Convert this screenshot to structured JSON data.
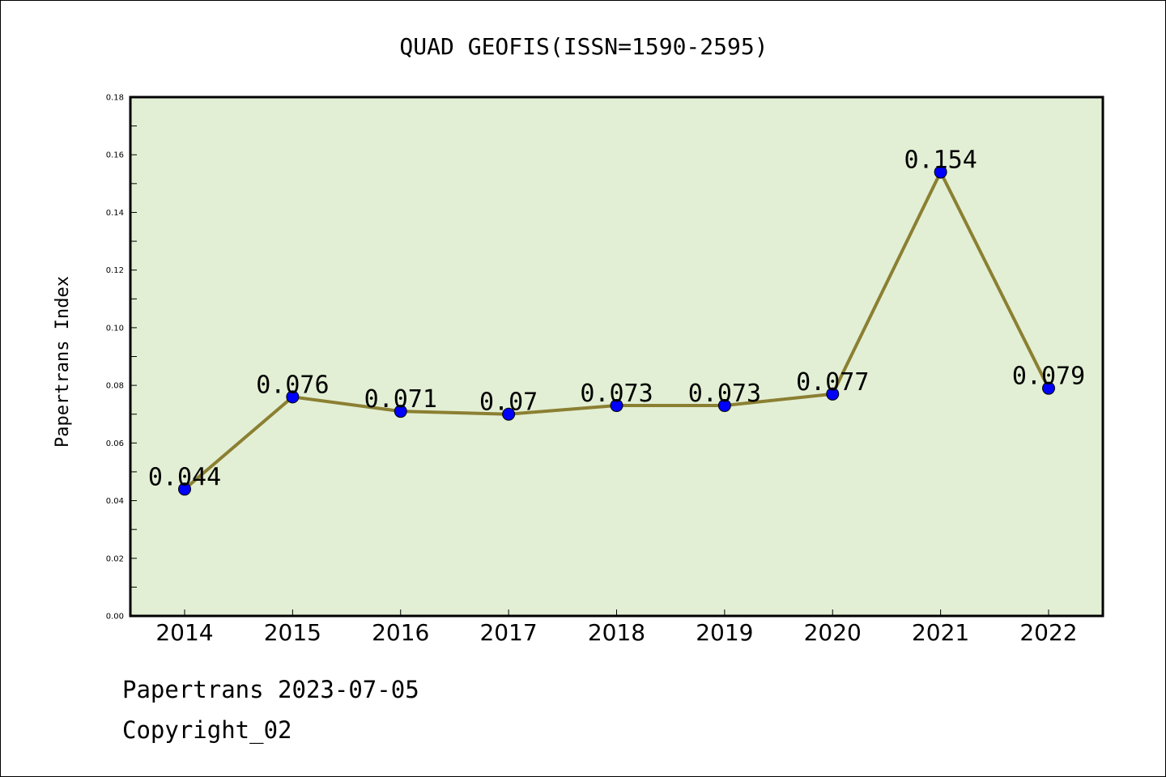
{
  "chart_data": {
    "type": "line",
    "title": "QUAD GEOFIS(ISSN=1590-2595)",
    "xlabel": "",
    "ylabel": "Papertrans Index",
    "categories": [
      "2014",
      "2015",
      "2016",
      "2017",
      "2018",
      "2019",
      "2020",
      "2021",
      "2022"
    ],
    "series": [
      {
        "values": [
          0.044,
          0.076,
          0.071,
          0.07,
          0.073,
          0.073,
          0.077,
          0.154,
          0.079
        ],
        "data_labels": [
          "0.044",
          "0.076",
          "0.071",
          "0.07",
          "0.073",
          "0.073",
          "0.077",
          "0.154",
          "0.079"
        ]
      }
    ],
    "ylim": [
      0,
      0.18
    ],
    "yticks": [
      "0.00",
      "0.02",
      "0.04",
      "0.06",
      "0.08",
      "0.10",
      "0.12",
      "0.14",
      "0.16",
      "0.18"
    ],
    "grid": false,
    "legend": "none",
    "colors": {
      "background": "#e2efd4",
      "line": "#8b7f32",
      "marker": "#0000ff"
    }
  },
  "footer": {
    "source": "Papertrans 2023-07-05",
    "copyright": "Copyright_02"
  }
}
